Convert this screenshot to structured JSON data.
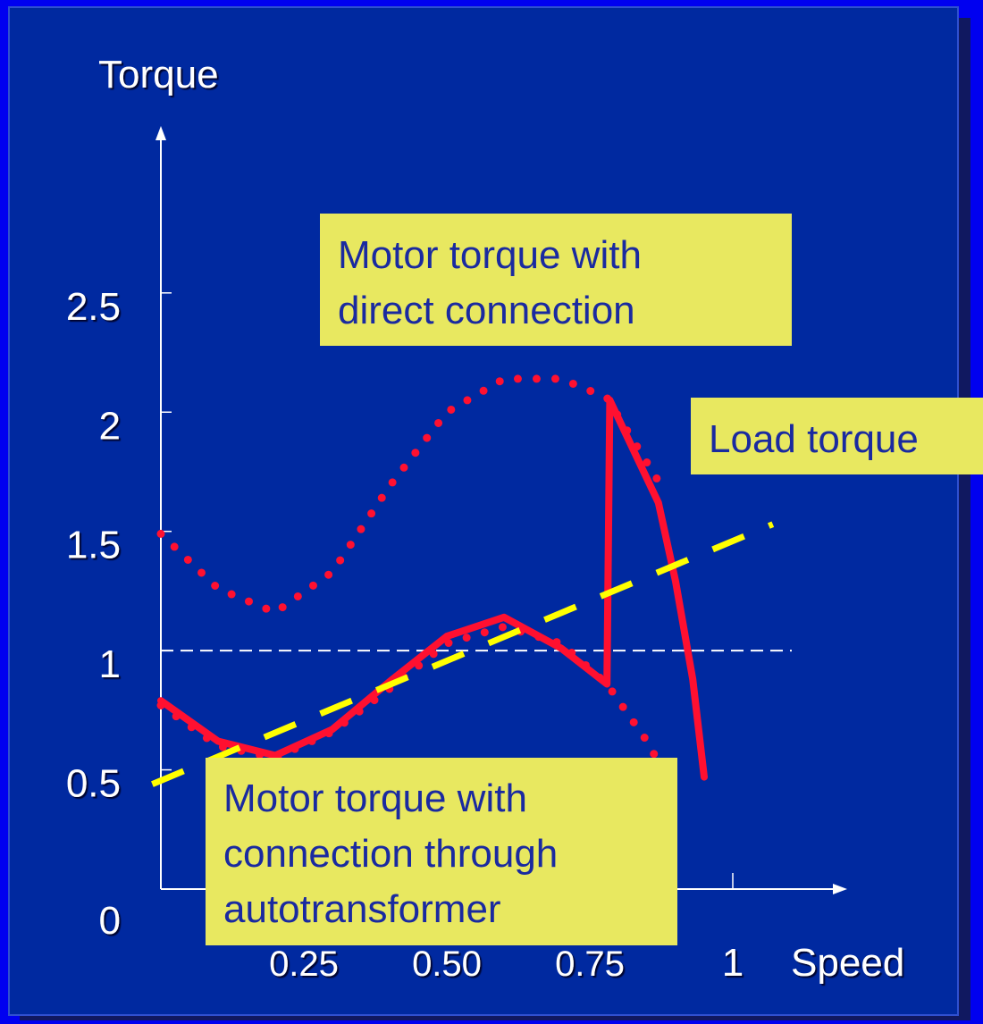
{
  "chart_data": {
    "type": "line",
    "x_label": "Speed",
    "y_label": "Torque",
    "xlim": [
      0,
      1.2
    ],
    "ylim": [
      0,
      3.2
    ],
    "xticks": [
      0.25,
      {
        "value": 0.5,
        "label": "0.50"
      },
      0.75,
      1
    ],
    "yticks": [
      0,
      0.5,
      1,
      1.5,
      2,
      2.5
    ],
    "reference_line": 1,
    "series": [
      {
        "color": "#ff1030",
        "style": "dotted",
        "x": [
          0,
          0.1,
          0.2,
          0.3,
          0.4,
          0.5,
          0.6,
          0.7,
          0.78,
          0.87
        ],
        "values": [
          1.49,
          1.26,
          1.16,
          1.33,
          1.69,
          2.0,
          2.14,
          2.14,
          2.06,
          1.71
        ]
      },
      {
        "color": "#ff1030",
        "style": "dotted",
        "x": [
          0,
          0.1,
          0.2,
          0.3,
          0.4,
          0.5,
          0.6,
          0.7,
          0.78,
          0.85,
          0.9
        ],
        "values": [
          0.77,
          0.6,
          0.55,
          0.66,
          0.84,
          1.03,
          1.1,
          1.03,
          0.86,
          0.62,
          0.4
        ]
      },
      {
        "color": "#ff1030",
        "style": "solid",
        "x": [
          0,
          0.1,
          0.2,
          0.3,
          0.4,
          0.5,
          0.6,
          0.7,
          0.78,
          0.785,
          0.87,
          0.9,
          0.93,
          0.95
        ],
        "values": [
          0.79,
          0.62,
          0.56,
          0.67,
          0.87,
          1.06,
          1.14,
          1.01,
          0.86,
          2.05,
          1.62,
          1.29,
          0.88,
          0.47
        ]
      },
      {
        "color": "#ffff00",
        "style": "dashed",
        "x": [
          -0.015,
          1.07
        ],
        "values": [
          0.44,
          1.53
        ]
      }
    ],
    "annotations": [
      {
        "lines": [
          "Motor torque with",
          "direct connection"
        ]
      },
      {
        "lines": [
          "Load torque"
        ]
      },
      {
        "lines": [
          "Motor torque with",
          "connection through",
          "autotransformer"
        ]
      }
    ]
  }
}
